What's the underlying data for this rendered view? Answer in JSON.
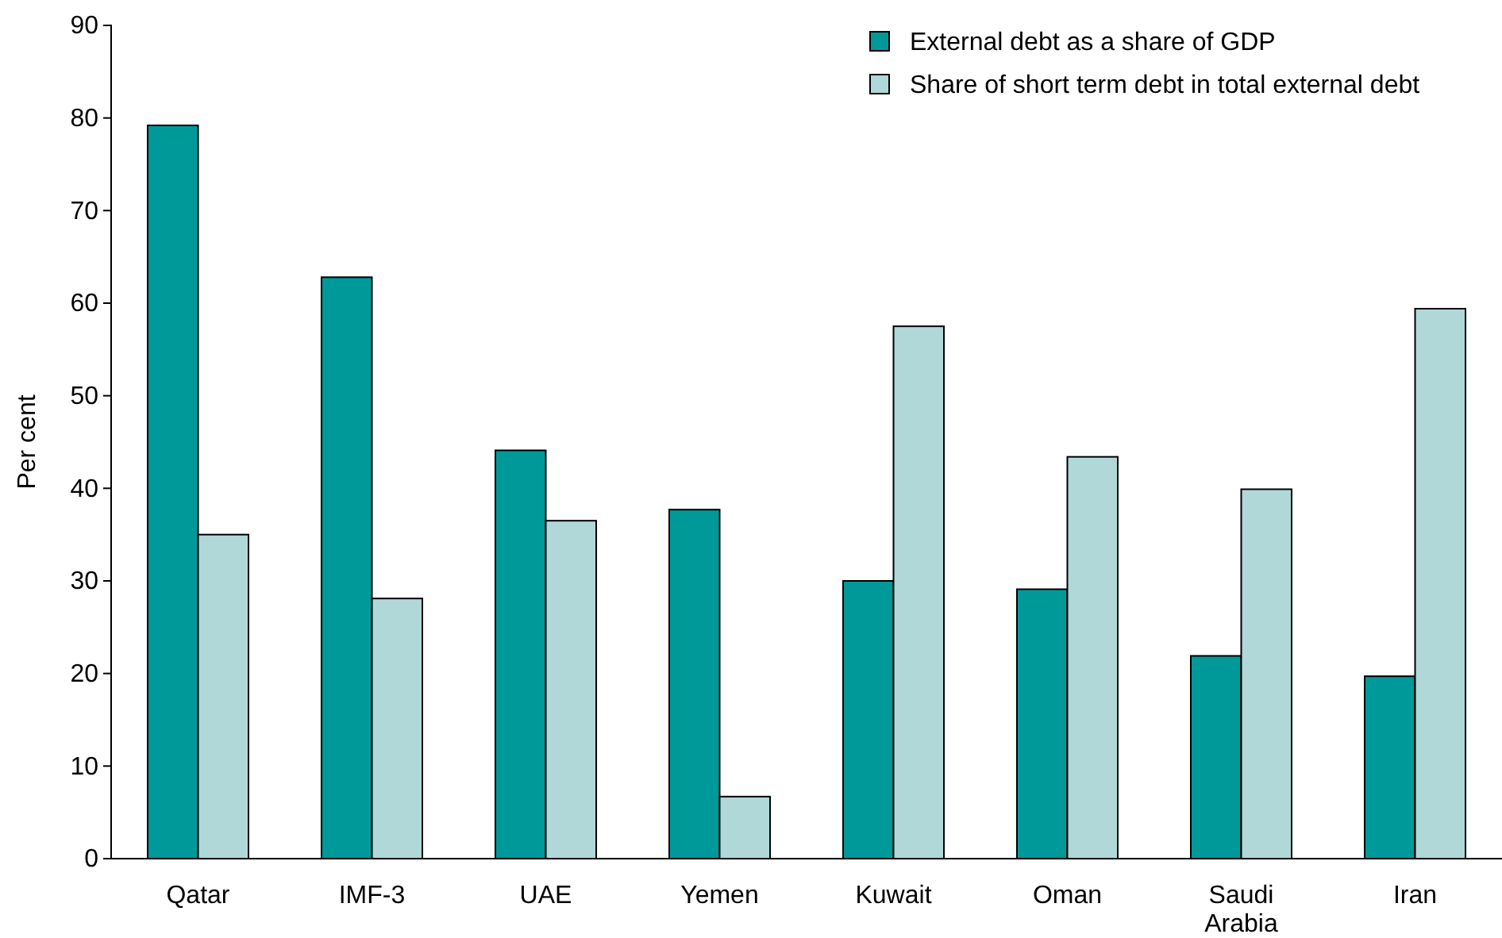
{
  "chart_data": {
    "type": "bar",
    "ylabel": "Per cent",
    "categories": [
      "Qatar",
      "IMF-3",
      "UAE",
      "Yemen",
      "Kuwait",
      "Oman",
      "Saudi Arabia",
      "Iran"
    ],
    "series": [
      {
        "name": "External debt as a share of GDP",
        "color": "#009999",
        "values": [
          79.2,
          62.8,
          44.1,
          37.7,
          30.0,
          29.1,
          21.9,
          19.7
        ]
      },
      {
        "name": "Share of short term debt in total external debt",
        "color": "#b0d8d8",
        "values": [
          35.0,
          28.1,
          36.5,
          6.7,
          57.5,
          43.4,
          39.9,
          59.4
        ]
      }
    ],
    "ylim": [
      0,
      90
    ],
    "yticks": [
      0,
      10,
      20,
      30,
      40,
      50,
      60,
      70,
      80,
      90
    ],
    "grid": false,
    "legend": "top right"
  }
}
